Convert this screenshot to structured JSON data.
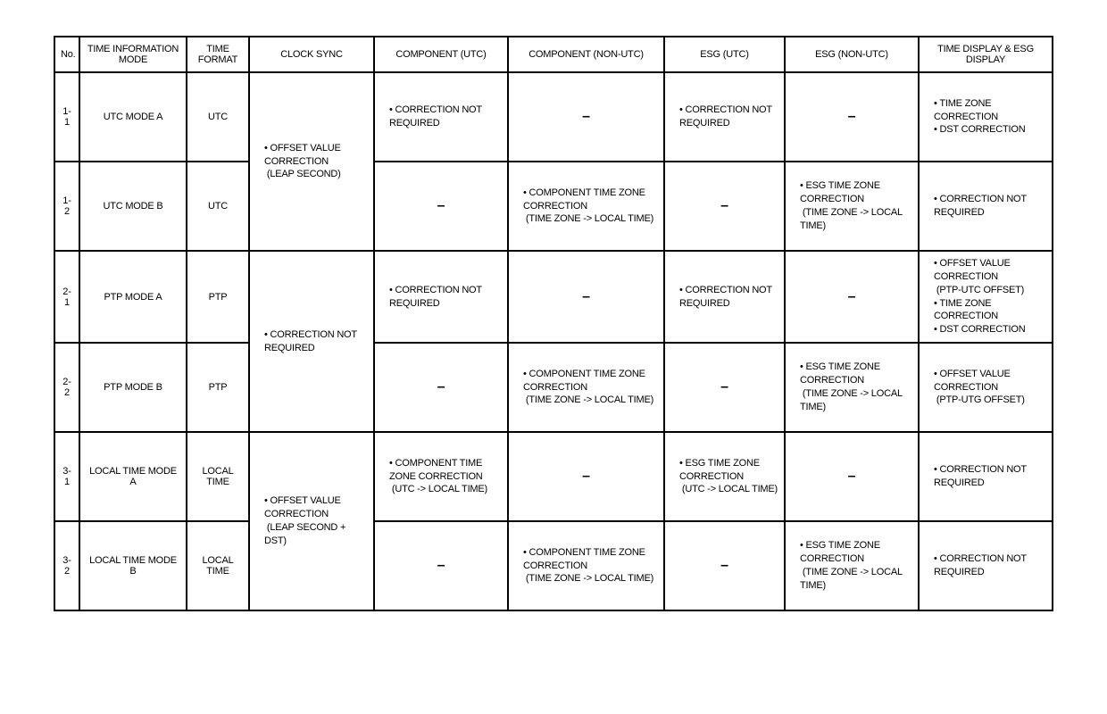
{
  "columns": {
    "no": "No.",
    "mode": "TIME INFORMATION MODE",
    "format": "TIME FORMAT",
    "sync": "CLOCK SYNC",
    "comp_utc": "COMPONENT (UTC)",
    "comp_non": "COMPONENT (NON-UTC)",
    "esg_utc": "ESG (UTC)",
    "esg_non": "ESG (NON-UTC)",
    "display": "TIME DISPLAY & ESG DISPLAY"
  },
  "dash": "–",
  "groups": [
    {
      "sync": [
        "OFFSET VALUE CORRECTION",
        "(LEAP SECOND)"
      ],
      "rows": [
        {
          "no": "1-1",
          "mode": "UTC MODE A",
          "format": "UTC",
          "comp_utc": [
            "CORRECTION NOT REQUIRED"
          ],
          "comp_non": null,
          "esg_utc": [
            "CORRECTION NOT REQUIRED"
          ],
          "esg_non": null,
          "display": [
            "TIME ZONE CORRECTION",
            "DST CORRECTION"
          ]
        },
        {
          "no": "1-2",
          "mode": "UTC MODE B",
          "format": "UTC",
          "comp_utc": null,
          "comp_non": [
            "COMPONENT TIME ZONE CORRECTION",
            "(TIME ZONE -> LOCAL TIME)"
          ],
          "esg_utc": null,
          "esg_non": [
            "ESG TIME ZONE CORRECTION",
            "(TIME ZONE -> LOCAL TIME)"
          ],
          "display": [
            "CORRECTION NOT REQUIRED"
          ]
        }
      ]
    },
    {
      "sync": [
        "CORRECTION NOT REQUIRED"
      ],
      "rows": [
        {
          "no": "2-1",
          "mode": "PTP MODE A",
          "format": "PTP",
          "comp_utc": [
            "CORRECTION NOT REQUIRED"
          ],
          "comp_non": null,
          "esg_utc": [
            "CORRECTION NOT REQUIRED"
          ],
          "esg_non": null,
          "display": [
            "OFFSET VALUE CORRECTION",
            "(PTP-UTC OFFSET)",
            "TIME ZONE CORRECTION",
            "DST CORRECTION"
          ]
        },
        {
          "no": "2-2",
          "mode": "PTP MODE B",
          "format": "PTP",
          "comp_utc": null,
          "comp_non": [
            "COMPONENT TIME ZONE CORRECTION",
            "(TIME ZONE -> LOCAL TIME)"
          ],
          "esg_utc": null,
          "esg_non": [
            "ESG TIME ZONE CORRECTION",
            "(TIME ZONE -> LOCAL TIME)"
          ],
          "display": [
            "OFFSET VALUE CORRECTION",
            "(PTP-UTG OFFSET)"
          ]
        }
      ]
    },
    {
      "sync": [
        "OFFSET VALUE CORRECTION",
        "(LEAP SECOND + DST)"
      ],
      "rows": [
        {
          "no": "3-1",
          "mode": "LOCAL TIME MODE A",
          "format": "LOCAL TIME",
          "comp_utc": [
            "COMPONENT TIME ZONE CORRECTION",
            "(UTC -> LOCAL TIME)"
          ],
          "comp_non": null,
          "esg_utc": [
            "ESG TIME ZONE CORRECTION",
            "(UTC -> LOCAL TIME)"
          ],
          "esg_non": null,
          "display": [
            "CORRECTION NOT REQUIRED"
          ]
        },
        {
          "no": "3-2",
          "mode": "LOCAL TIME MODE B",
          "format": "LOCAL TIME",
          "comp_utc": null,
          "comp_non": [
            "COMPONENT TIME ZONE CORRECTION",
            "(TIME ZONE -> LOCAL TIME)"
          ],
          "esg_utc": null,
          "esg_non": [
            "ESG TIME ZONE CORRECTION",
            "(TIME ZONE -> LOCAL TIME)"
          ],
          "display": [
            "CORRECTION NOT REQUIRED"
          ]
        }
      ]
    }
  ],
  "display_wrap_pairs": [
    [
      "OFFSET VALUE CORRECTION",
      "(PTP-UTC OFFSET)"
    ],
    [
      "OFFSET VALUE CORRECTION",
      "(PTP-UTG OFFSET)"
    ]
  ]
}
